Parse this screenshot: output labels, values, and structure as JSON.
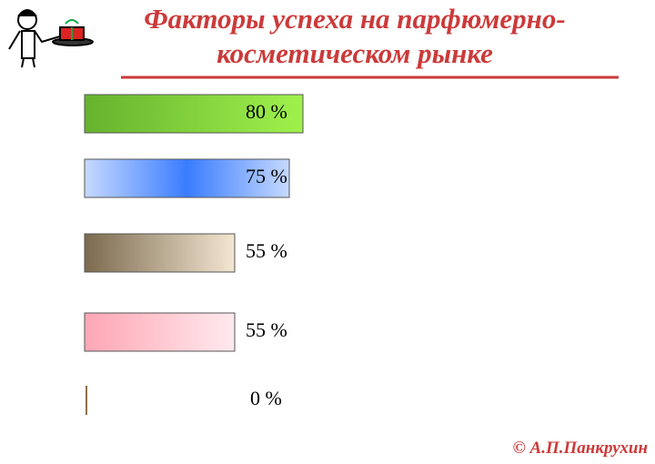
{
  "chart_data": {
    "type": "bar",
    "title": "Факторы успеха на парфюмерно-косметическом рынке",
    "values": [
      80,
      75,
      55,
      55,
      0
    ],
    "value_labels": [
      "80 %",
      "75 %",
      "55 %",
      "55 %",
      "0 %"
    ],
    "colors": [
      [
        "#66b22e",
        "#9ff24c"
      ],
      [
        "#c6d9ff",
        "#3a7cff"
      ],
      [
        "#7b6a4e",
        "#f3e6d2"
      ],
      [
        "#ffa6b4",
        "#ffeaee"
      ],
      [
        "#8a7048",
        "#8a7048"
      ]
    ],
    "credit": "© А.П.Панкрухин"
  }
}
